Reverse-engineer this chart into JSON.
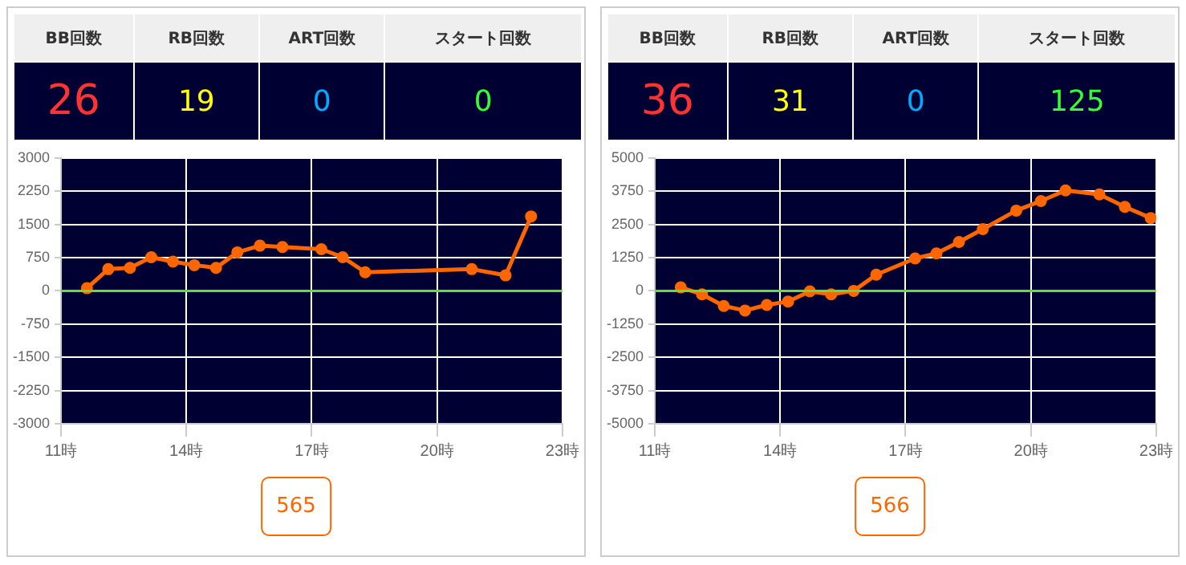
{
  "chart_data": [
    {
      "type": "other",
      "categories": [
        "BB回数",
        "RB回数",
        "ART回数",
        "スタート回数"
      ],
      "values": [
        26,
        19,
        0,
        0
      ],
      "data_labels": true
    },
    {
      "type": "line",
      "xlim": [
        11,
        23
      ],
      "xticks": [
        {
          "value": 11,
          "label": "11時"
        },
        {
          "value": 14,
          "label": "14時"
        },
        {
          "value": 17,
          "label": "17時"
        },
        {
          "value": 20,
          "label": "20時"
        },
        {
          "value": 23,
          "label": "23時"
        }
      ],
      "ylim": [
        -3000,
        3000
      ],
      "yticks": [
        -3000,
        -2250,
        -1500,
        -750,
        0,
        750,
        1500,
        2250,
        3000
      ],
      "grid": true,
      "marker": "circle",
      "legend": false,
      "series": [
        {
          "color": "#ff6600",
          "x": [
            11.62,
            12.13,
            12.65,
            13.16,
            13.68,
            14.19,
            14.71,
            15.22,
            15.76,
            16.3,
            17.23,
            17.74,
            18.28,
            20.83,
            21.64,
            22.25
          ],
          "values": [
            60,
            490,
            520,
            760,
            660,
            580,
            520,
            870,
            1020,
            990,
            940,
            760,
            420,
            490,
            350,
            1680
          ]
        }
      ],
      "ref_lines": [
        {
          "axis": "y",
          "value": 0,
          "color": "#66dd33"
        }
      ],
      "annotations": [
        "565"
      ]
    },
    {
      "type": "other",
      "categories": [
        "BB回数",
        "RB回数",
        "ART回数",
        "スタート回数"
      ],
      "values": [
        36,
        31,
        0,
        125
      ],
      "data_labels": true
    },
    {
      "type": "line",
      "xlim": [
        11,
        23
      ],
      "xticks": [
        {
          "value": 11,
          "label": "11時"
        },
        {
          "value": 14,
          "label": "14時"
        },
        {
          "value": 17,
          "label": "17時"
        },
        {
          "value": 20,
          "label": "20時"
        },
        {
          "value": 23,
          "label": "23時"
        }
      ],
      "ylim": [
        -5000,
        5000
      ],
      "yticks": [
        -5000,
        -3750,
        -2500,
        -1250,
        0,
        1250,
        2500,
        3750,
        5000
      ],
      "grid": true,
      "marker": "circle",
      "legend": false,
      "series": [
        {
          "color": "#ff6600",
          "x": [
            11.62,
            12.13,
            12.65,
            13.16,
            13.68,
            14.19,
            14.71,
            15.22,
            15.76,
            16.3,
            17.23,
            17.74,
            18.28,
            18.85,
            19.65,
            20.24,
            20.83,
            21.64,
            22.25,
            22.87
          ],
          "values": [
            130,
            -130,
            -570,
            -740,
            -530,
            -400,
            -20,
            -130,
            0,
            610,
            1220,
            1410,
            1840,
            2320,
            3020,
            3380,
            3780,
            3630,
            3160,
            2740
          ]
        }
      ],
      "ref_lines": [
        {
          "axis": "y",
          "value": 0,
          "color": "#66dd33"
        }
      ],
      "annotations": [
        "566"
      ]
    }
  ]
}
